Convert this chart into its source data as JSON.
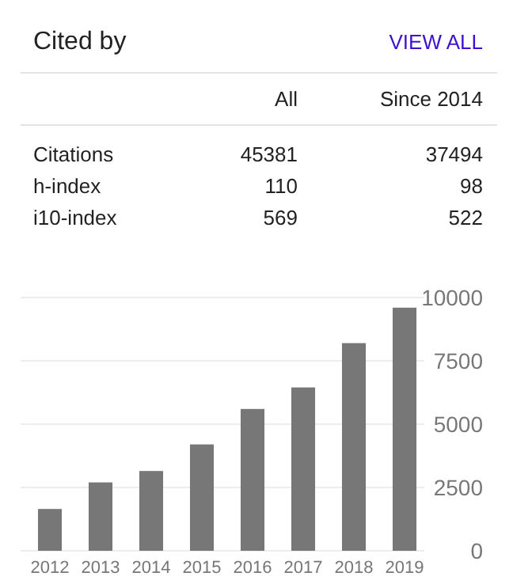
{
  "chart_data": [
    {
      "type": "other",
      "title": "Cited by",
      "annotations": [
        "VIEW ALL",
        "All",
        "Since 2014",
        "Citations",
        "45381",
        "37494",
        "h-index",
        "110",
        "98",
        "i10-index",
        "569",
        "522"
      ]
    },
    {
      "type": "bar",
      "categories": [
        "2012",
        "2013",
        "2014",
        "2015",
        "2016",
        "2017",
        "2018",
        "2019"
      ],
      "values": [
        1650,
        2700,
        3150,
        4200,
        5600,
        6450,
        8200,
        9600
      ],
      "color": "#777777",
      "ylim": [
        0,
        10000
      ],
      "yticks": [
        0,
        2500,
        5000,
        7500,
        10000
      ],
      "grid": "y"
    }
  ]
}
